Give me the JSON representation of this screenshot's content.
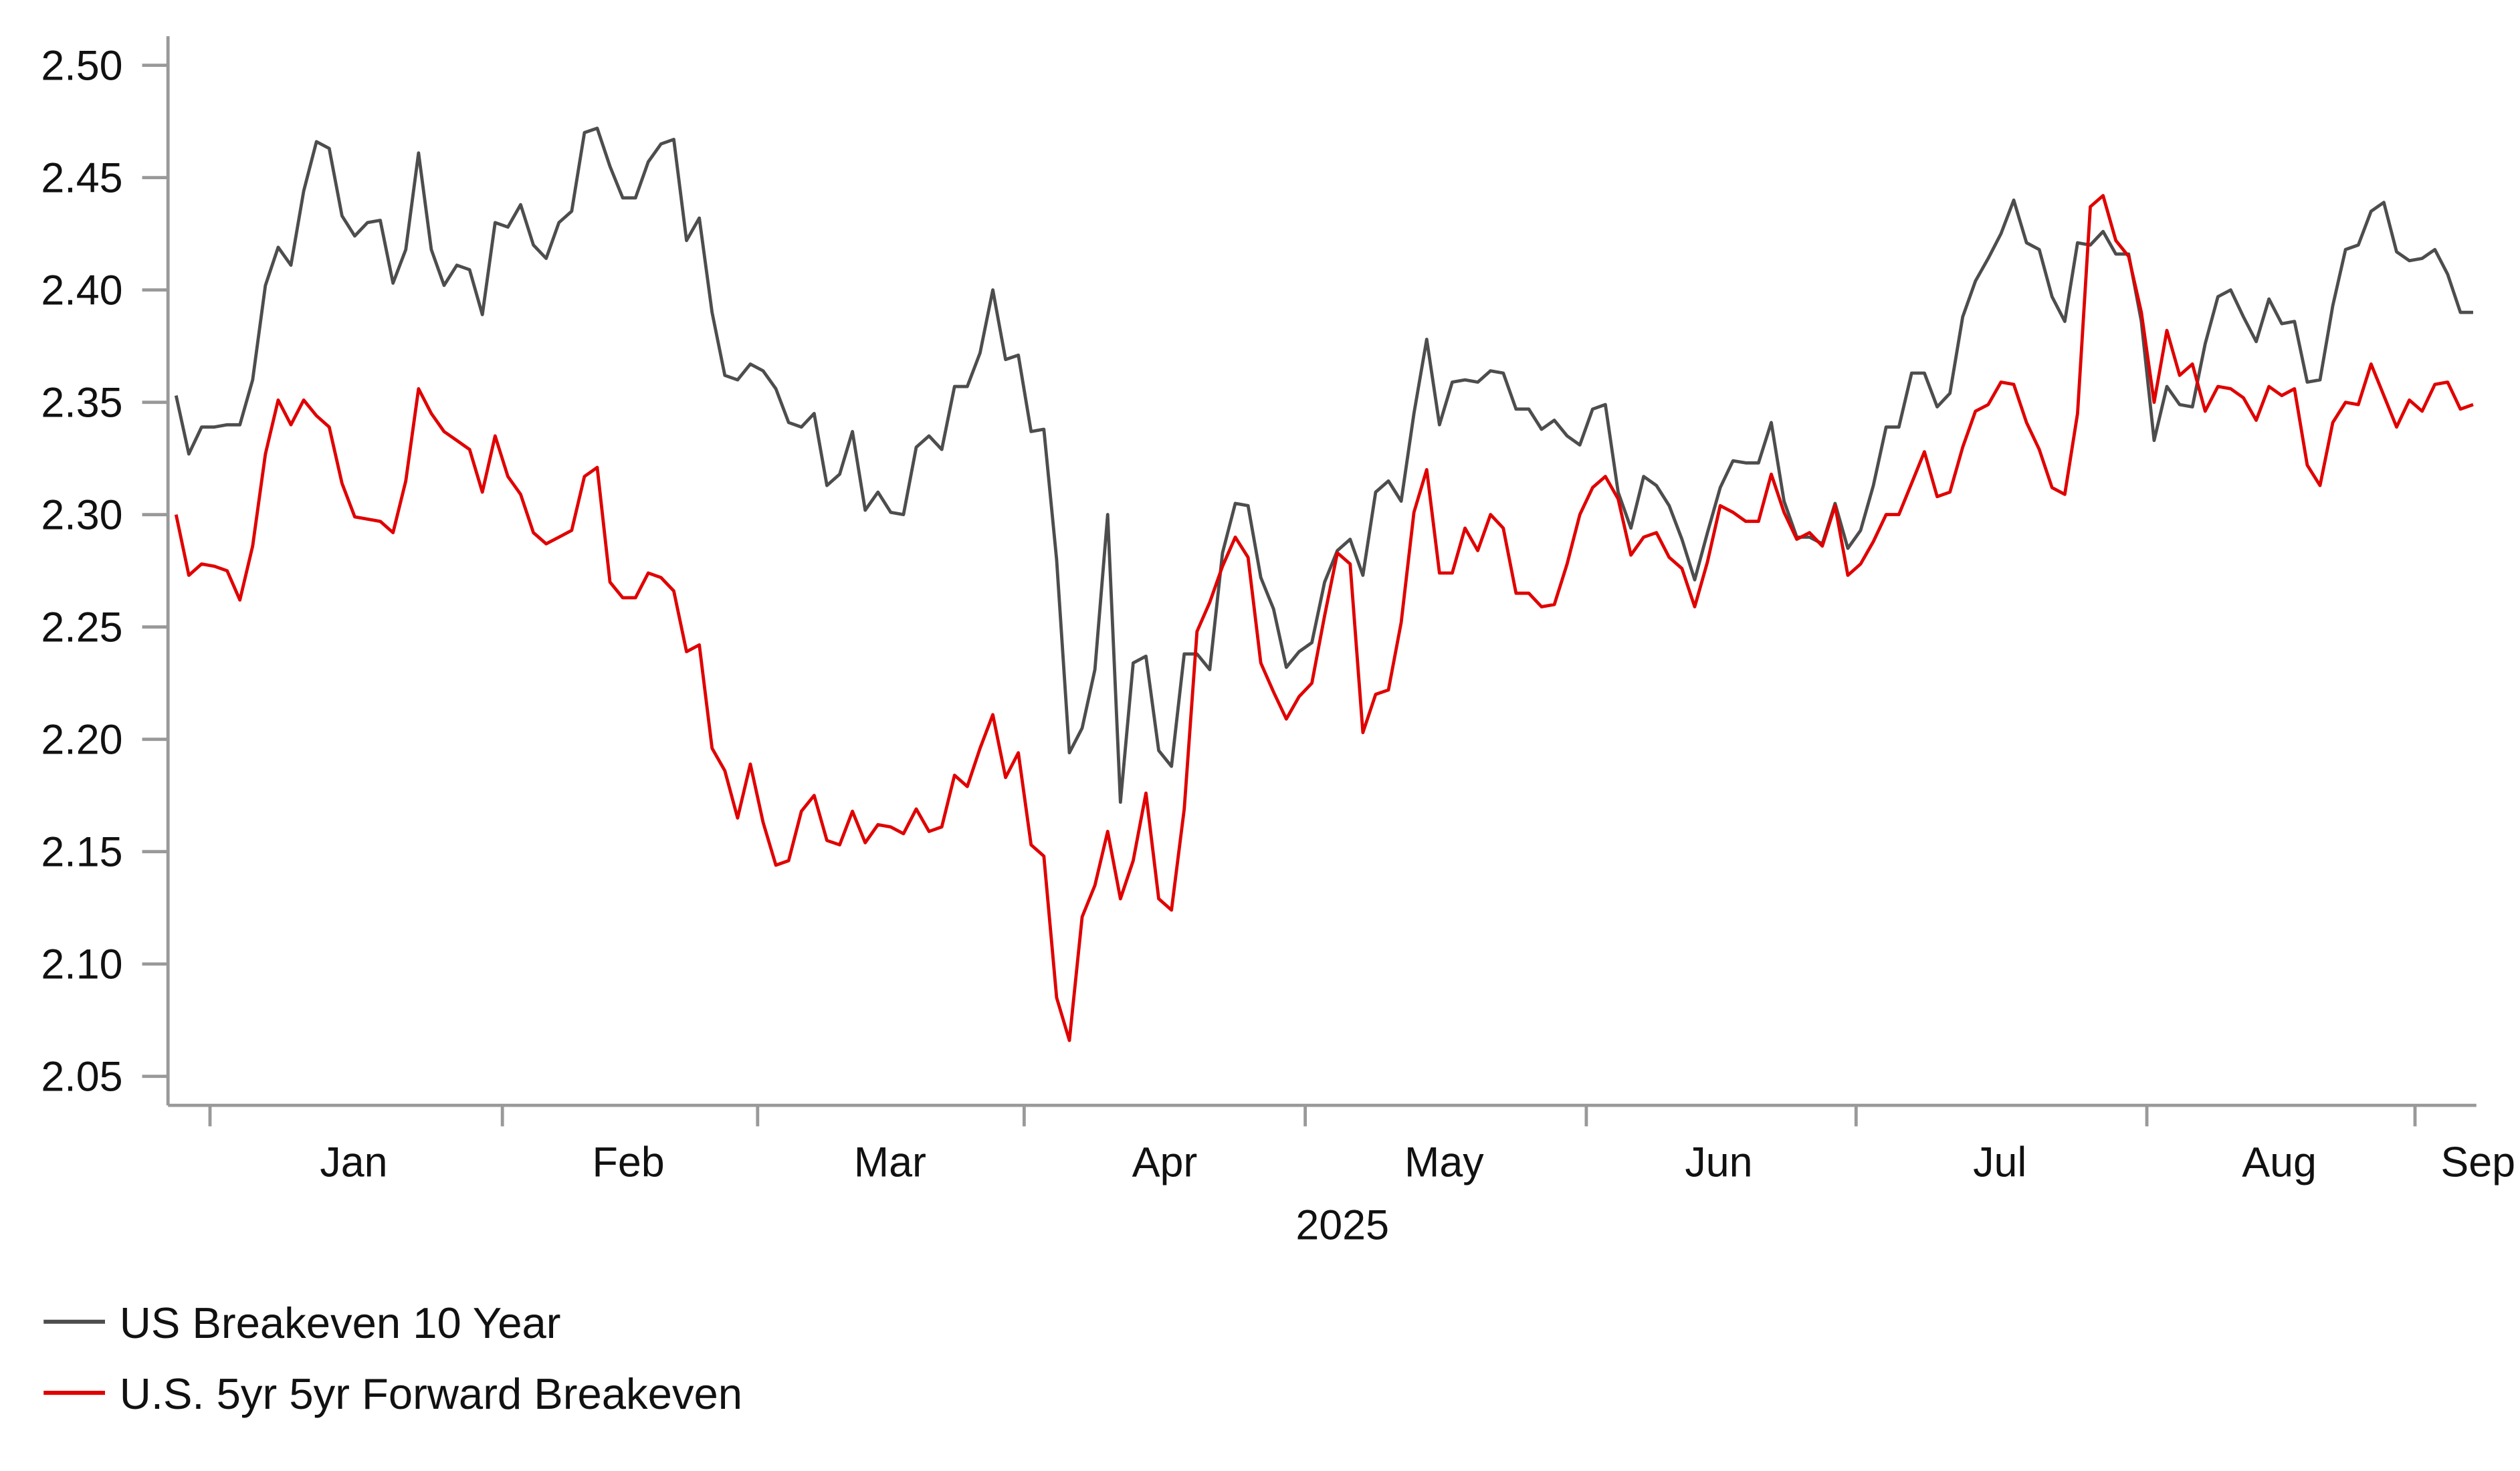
{
  "chart_data": {
    "type": "line",
    "title": "",
    "xlabel": "2025",
    "ylabel": "",
    "ylim": [
      2.04,
      2.52
    ],
    "y_ticks": [
      "2.05",
      "2.10",
      "2.15",
      "2.20",
      "2.25",
      "2.30",
      "2.35",
      "2.40",
      "2.45",
      "2.50"
    ],
    "x_tick_labels": [
      "Jan",
      "Feb",
      "Mar",
      "Apr",
      "May",
      "Jun",
      "Jul",
      "Aug",
      "Sep"
    ],
    "x_range": [
      "2024-12-27",
      "2025-09-04"
    ],
    "x_frequency": "business days",
    "grid": false,
    "legend_position": "bottom-left",
    "series": [
      {
        "name": "US Breakeven 10 Year",
        "color": "#4d4d4d",
        "values": [
          2.353,
          2.327,
          2.339,
          2.339,
          2.34,
          2.34,
          2.36,
          2.402,
          2.419,
          2.411,
          2.444,
          2.466,
          2.463,
          2.433,
          2.424,
          2.43,
          2.431,
          2.403,
          2.418,
          2.461,
          2.418,
          2.402,
          2.411,
          2.409,
          2.389,
          2.43,
          2.428,
          2.438,
          2.42,
          2.414,
          2.43,
          2.435,
          2.47,
          2.472,
          2.455,
          2.441,
          2.441,
          2.457,
          2.465,
          2.467,
          2.422,
          2.432,
          2.39,
          2.362,
          2.36,
          2.367,
          2.364,
          2.356,
          2.341,
          2.339,
          2.345,
          2.313,
          2.318,
          2.337,
          2.302,
          2.31,
          2.301,
          2.3,
          2.33,
          2.335,
          2.329,
          2.357,
          2.357,
          2.372,
          2.4,
          2.369,
          2.371,
          2.337,
          2.338,
          2.28,
          2.194,
          2.205,
          2.231,
          2.3,
          2.172,
          2.234,
          2.237,
          2.195,
          2.188,
          2.238,
          2.238,
          2.231,
          2.283,
          2.305,
          2.304,
          2.272,
          2.258,
          2.232,
          2.239,
          2.243,
          2.27,
          2.284,
          2.289,
          2.273,
          2.31,
          2.315,
          2.306,
          2.345,
          2.378,
          2.34,
          2.359,
          2.36,
          2.359,
          2.364,
          2.363,
          2.347,
          2.347,
          2.338,
          2.342,
          2.335,
          2.331,
          2.347,
          2.349,
          2.31,
          2.294,
          2.317,
          2.313,
          2.304,
          2.289,
          2.271,
          2.292,
          2.312,
          2.324,
          2.323,
          2.323,
          2.341,
          2.306,
          2.29,
          2.29,
          2.287,
          2.305,
          2.285,
          2.293,
          2.313,
          2.339,
          2.339,
          2.363,
          2.363,
          2.348,
          2.354,
          2.388,
          2.404,
          2.414,
          2.425,
          2.44,
          2.421,
          2.418,
          2.397,
          2.386,
          2.421,
          2.42,
          2.426,
          2.416,
          2.416,
          2.386,
          2.333,
          2.357,
          2.349,
          2.348,
          2.376,
          2.397,
          2.4,
          2.388,
          2.377,
          2.396,
          2.385,
          2.386,
          2.359,
          2.36,
          2.393,
          2.418,
          2.42,
          2.435,
          2.439,
          2.417,
          2.413,
          2.414,
          2.418,
          2.407,
          2.39,
          2.39
        ]
      },
      {
        "name": "U.S. 5yr 5yr Forward Breakeven",
        "color": "#e00000",
        "values": [
          2.3,
          2.273,
          2.278,
          2.277,
          2.275,
          2.262,
          2.286,
          2.327,
          2.351,
          2.34,
          2.351,
          2.344,
          2.339,
          2.314,
          2.299,
          2.298,
          2.297,
          2.292,
          2.315,
          2.356,
          2.345,
          2.337,
          2.333,
          2.329,
          2.31,
          2.335,
          2.317,
          2.309,
          2.292,
          2.287,
          2.29,
          2.293,
          2.317,
          2.321,
          2.27,
          2.263,
          2.263,
          2.274,
          2.272,
          2.266,
          2.239,
          2.242,
          2.196,
          2.186,
          2.165,
          2.189,
          2.163,
          2.144,
          2.146,
          2.168,
          2.175,
          2.155,
          2.153,
          2.168,
          2.154,
          2.162,
          2.161,
          2.158,
          2.169,
          2.159,
          2.161,
          2.184,
          2.179,
          2.196,
          2.211,
          2.183,
          2.194,
          2.153,
          2.148,
          2.085,
          2.066,
          2.121,
          2.135,
          2.159,
          2.129,
          2.146,
          2.176,
          2.129,
          2.124,
          2.169,
          2.248,
          2.261,
          2.277,
          2.29,
          2.281,
          2.234,
          2.221,
          2.209,
          2.219,
          2.225,
          2.255,
          2.283,
          2.278,
          2.203,
          2.22,
          2.222,
          2.252,
          2.301,
          2.32,
          2.274,
          2.274,
          2.294,
          2.284,
          2.3,
          2.294,
          2.265,
          2.265,
          2.259,
          2.26,
          2.278,
          2.3,
          2.312,
          2.317,
          2.307,
          2.282,
          2.29,
          2.292,
          2.281,
          2.276,
          2.259,
          2.279,
          2.304,
          2.301,
          2.297,
          2.297,
          2.318,
          2.301,
          2.289,
          2.292,
          2.286,
          2.304,
          2.273,
          2.278,
          2.288,
          2.3,
          2.3,
          2.314,
          2.328,
          2.308,
          2.31,
          2.33,
          2.346,
          2.349,
          2.359,
          2.358,
          2.341,
          2.329,
          2.312,
          2.309,
          2.345,
          2.437,
          2.442,
          2.422,
          2.415,
          2.39,
          2.35,
          2.382,
          2.362,
          2.367,
          2.346,
          2.357,
          2.356,
          2.352,
          2.342,
          2.357,
          2.353,
          2.356,
          2.322,
          2.313,
          2.341,
          2.35,
          2.349,
          2.367,
          2.353,
          2.339,
          2.351,
          2.346,
          2.358,
          2.359,
          2.347,
          2.349
        ]
      }
    ]
  }
}
